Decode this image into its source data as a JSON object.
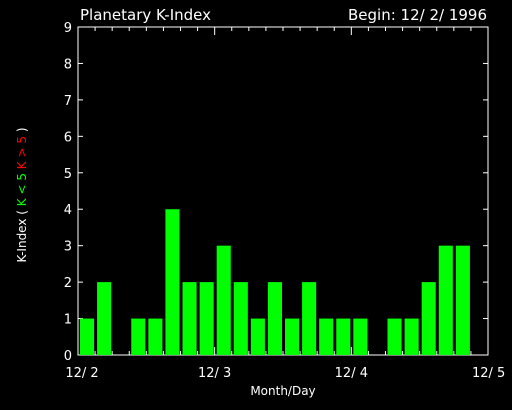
{
  "chart_data": {
    "type": "bar",
    "title": "Planetary K-Index",
    "subtitle": "Begin: 12/ 2/ 1996",
    "xlabel": "Month/Day",
    "ylabel": {
      "main": "K-Index",
      "open": "(",
      "green_part": "K < 5",
      "red_part": "K > 5",
      "close": ")"
    },
    "ylim": [
      0,
      9
    ],
    "yticks": [
      "0",
      "1",
      "2",
      "3",
      "4",
      "5",
      "6",
      "7",
      "8",
      "9"
    ],
    "xlim": [
      0,
      24
    ],
    "xticks": [
      {
        "label": "12/ 2",
        "pos": 0
      },
      {
        "label": "12/ 3",
        "pos": 8
      },
      {
        "label": "12/ 4",
        "pos": 16
      },
      {
        "label": "12/ 5",
        "pos": 24
      }
    ],
    "values": [
      1,
      2,
      0,
      1,
      1,
      4,
      2,
      2,
      3,
      2,
      1,
      2,
      1,
      2,
      1,
      1,
      1,
      0,
      1,
      1,
      2,
      3,
      3,
      0
    ],
    "bar_color": "#00ff00",
    "label_green": "#00ff00",
    "label_red": "#ff0000",
    "background": "#000000",
    "axis_color": "#ffffff"
  }
}
